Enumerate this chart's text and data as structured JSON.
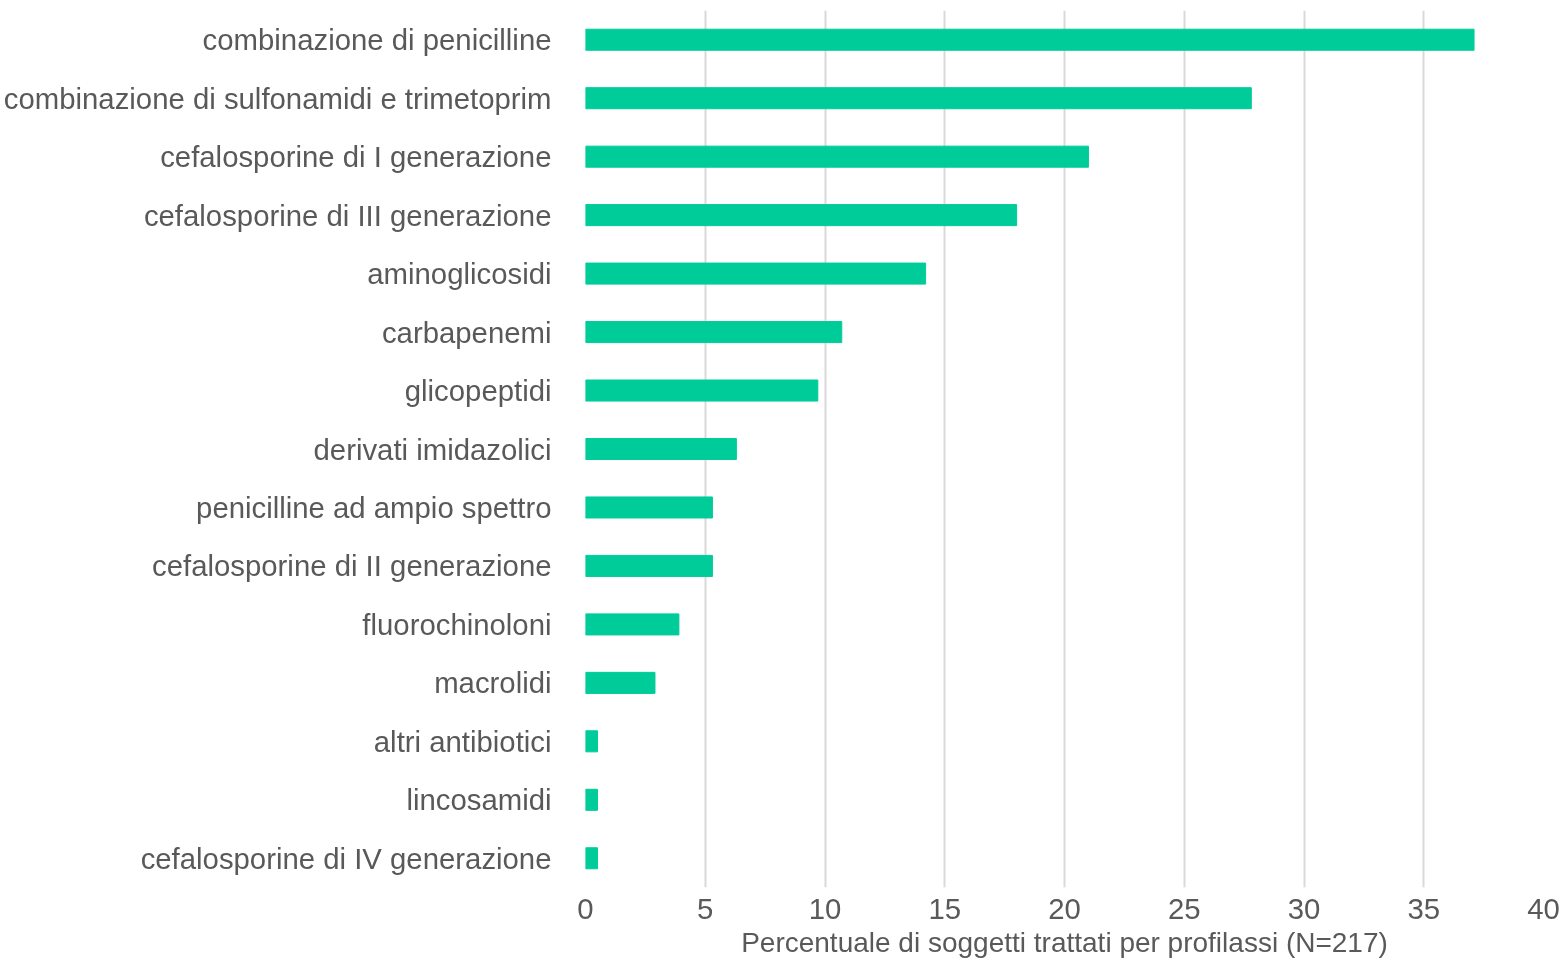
{
  "chart_data": {
    "type": "bar",
    "orientation": "horizontal",
    "xlabel": "Percentuale di soggetti trattati per profilassi (N=217)",
    "categories": [
      "combinazione di penicilline",
      "combinazione di sulfonamidi e trimetoprim",
      "cefalosporine di I generazione",
      "cefalosporine di III generazione",
      "aminoglicosidi",
      "carbapenemi",
      "glicopeptidi",
      "derivati imidazolici",
      "penicilline ad ampio spettro",
      "cefalosporine di II generazione",
      "fluorochinoloni",
      "macrolidi",
      "altri antibiotici",
      "lincosamidi",
      "cefalosporine di IV generazione"
    ],
    "values": [
      37.1,
      27.8,
      21.0,
      18.0,
      14.2,
      10.7,
      9.7,
      6.3,
      5.3,
      5.3,
      3.9,
      2.9,
      0.5,
      0.5,
      0.5
    ],
    "color": "#00cc99",
    "xlim": [
      0,
      40
    ],
    "xticks": [
      0,
      5,
      10,
      15,
      20,
      25,
      30,
      35,
      40
    ],
    "grid": "x"
  }
}
